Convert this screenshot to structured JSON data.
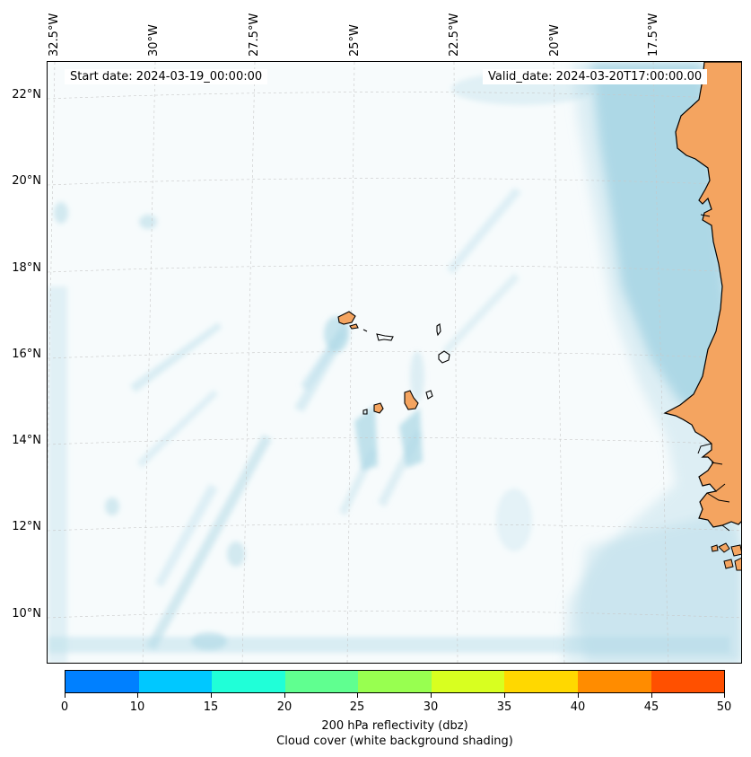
{
  "map": {
    "start_date": "Start date: 2024-03-19_00:00:00",
    "valid_date": "Valid_date: 2024-03-20T17:00:00.00",
    "longitude_labels": [
      "32.5°W",
      "30°W",
      "27.5°W",
      "25°W",
      "22.5°W",
      "20°W",
      "17.5°W"
    ],
    "latitude_labels": [
      "22°N",
      "20°N",
      "18°N",
      "16°N",
      "14°N",
      "12°N",
      "10°N"
    ],
    "colors": {
      "land": "#f4a460",
      "cloud_cover": "#add8e6",
      "coastline": "#000000",
      "gridline": "#c8c8c8"
    }
  },
  "colorbar": {
    "ticks": [
      "0",
      "10",
      "15",
      "20",
      "25",
      "30",
      "35",
      "40",
      "45",
      "50"
    ],
    "colors": [
      "#0080ff",
      "#00c8ff",
      "#20ffd8",
      "#60ff90",
      "#98ff50",
      "#d8ff20",
      "#ffd800",
      "#ff8c00",
      "#ff5000"
    ],
    "label": "200 hPa reflectivity (dbz)",
    "sublabel": "Cloud cover (white background shading)"
  }
}
